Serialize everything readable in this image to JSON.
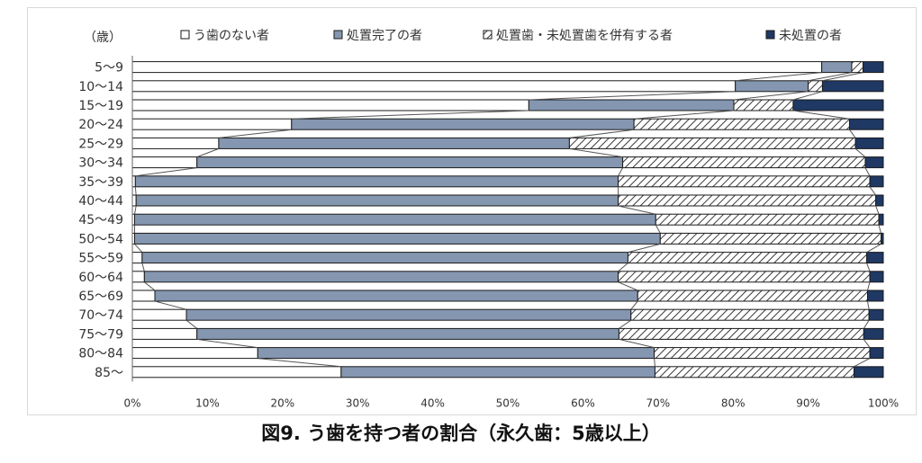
{
  "caption": "図9. う歯を持つ者の割合（永久歯：5歳以上）",
  "chart_data": {
    "type": "bar",
    "orientation": "horizontal",
    "stacked": "percent",
    "y_axis_unit": "（歳）",
    "categories": [
      "5〜9",
      "10〜14",
      "15〜19",
      "20〜24",
      "25〜29",
      "30〜34",
      "35〜39",
      "40〜44",
      "45〜49",
      "50〜54",
      "55〜59",
      "60〜64",
      "65〜69",
      "70〜74",
      "75〜79",
      "80〜84",
      "85〜"
    ],
    "xlim": [
      0,
      100
    ],
    "xticks": [
      "0%",
      "10%",
      "20%",
      "30%",
      "40%",
      "50%",
      "60%",
      "70%",
      "80%",
      "90%",
      "100%"
    ],
    "legend_position": "top",
    "series": [
      {
        "name": "う歯のない者",
        "color": "#ffffff",
        "pattern": "none",
        "values": [
          91.8,
          80.3,
          52.8,
          21.2,
          11.5,
          8.6,
          0.4,
          0.5,
          0.3,
          0.3,
          1.3,
          1.6,
          3.0,
          7.2,
          8.6,
          16.7,
          27.8
        ]
      },
      {
        "name": "処置完了の者",
        "color": "#8496b0",
        "pattern": "none",
        "values": [
          4.0,
          9.7,
          27.3,
          45.6,
          46.7,
          56.7,
          64.3,
          64.2,
          69.4,
          70.0,
          64.7,
          63.1,
          64.3,
          59.2,
          56.2,
          52.8,
          41.8
        ]
      },
      {
        "name": "処置歯・未処置歯を併有する者",
        "color": "#ffffff",
        "pattern": "diagonal",
        "values": [
          1.5,
          1.9,
          7.9,
          28.7,
          38.1,
          32.3,
          33.5,
          34.3,
          29.7,
          29.4,
          31.8,
          33.5,
          30.6,
          31.7,
          32.6,
          28.7,
          26.5
        ]
      },
      {
        "name": "未処置の者",
        "color": "#1f3864",
        "pattern": "none",
        "values": [
          2.7,
          8.1,
          12.0,
          4.5,
          3.7,
          2.4,
          1.8,
          1.0,
          0.6,
          0.3,
          2.2,
          1.8,
          2.1,
          1.9,
          2.6,
          1.8,
          3.9
        ]
      }
    ]
  }
}
